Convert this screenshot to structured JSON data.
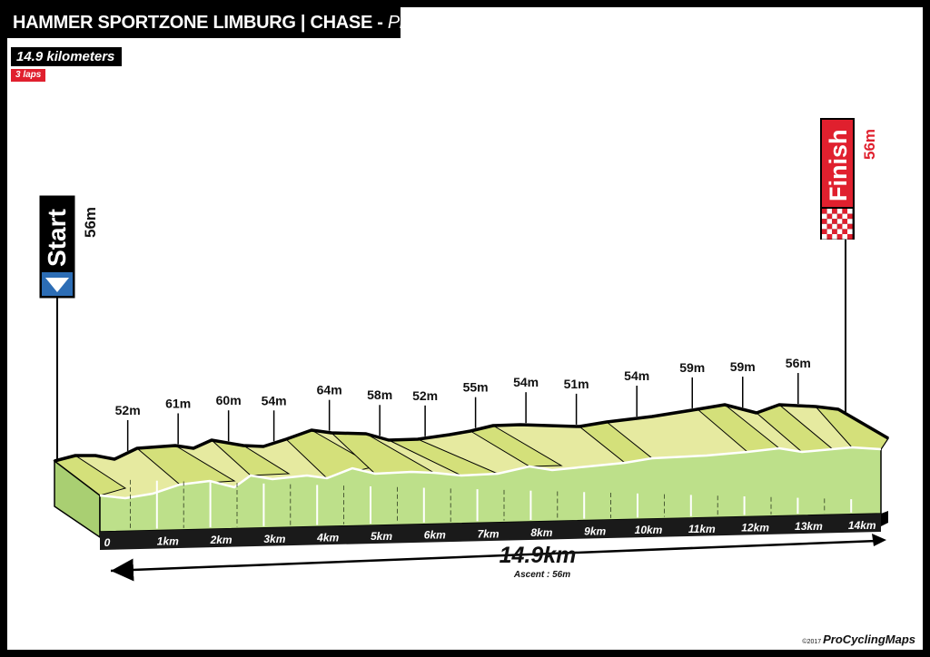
{
  "header": {
    "race": "HAMMER SPORTZONE LIMBURG | CHASE",
    "separator": " - ",
    "subtitle": "Profile"
  },
  "info": {
    "distance": "14.9 kilometers",
    "laps": "3 laps"
  },
  "start": {
    "label": "Start",
    "elevation": "56m"
  },
  "finish": {
    "label": "Finish",
    "elevation": "56m"
  },
  "total": {
    "distance": "14.9km",
    "ascent": "Ascent : 56m"
  },
  "credit": {
    "year": "©2017",
    "brand": "ProCyclingMaps"
  },
  "colors": {
    "wall": "#bde08a",
    "surface": "#e6eaa0",
    "slope": "#d4e07a",
    "start_flag": "#2c6db5",
    "finish_flag": "#e0202e"
  },
  "chart_data": {
    "type": "area",
    "x_unit": "km",
    "y_unit": "m",
    "distance_km": 14.9,
    "km_ticks": [
      "0",
      "1km",
      "2km",
      "3km",
      "4km",
      "5km",
      "6km",
      "7km",
      "8km",
      "9km",
      "10km",
      "11km",
      "12km",
      "13km",
      "14km"
    ],
    "elevation_labels": [
      {
        "km": 0.3,
        "text": "52m"
      },
      {
        "km": 1.3,
        "text": "61m"
      },
      {
        "km": 2.3,
        "text": "60m"
      },
      {
        "km": 3.2,
        "text": "54m"
      },
      {
        "km": 4.3,
        "text": "64m"
      },
      {
        "km": 5.3,
        "text": "58m"
      },
      {
        "km": 6.2,
        "text": "52m"
      },
      {
        "km": 7.2,
        "text": "55m"
      },
      {
        "km": 8.2,
        "text": "54m"
      },
      {
        "km": 9.2,
        "text": "51m"
      },
      {
        "km": 10.4,
        "text": "54m"
      },
      {
        "km": 11.5,
        "text": "59m"
      },
      {
        "km": 12.5,
        "text": "59m"
      },
      {
        "km": 13.6,
        "text": "56m"
      }
    ]
  }
}
